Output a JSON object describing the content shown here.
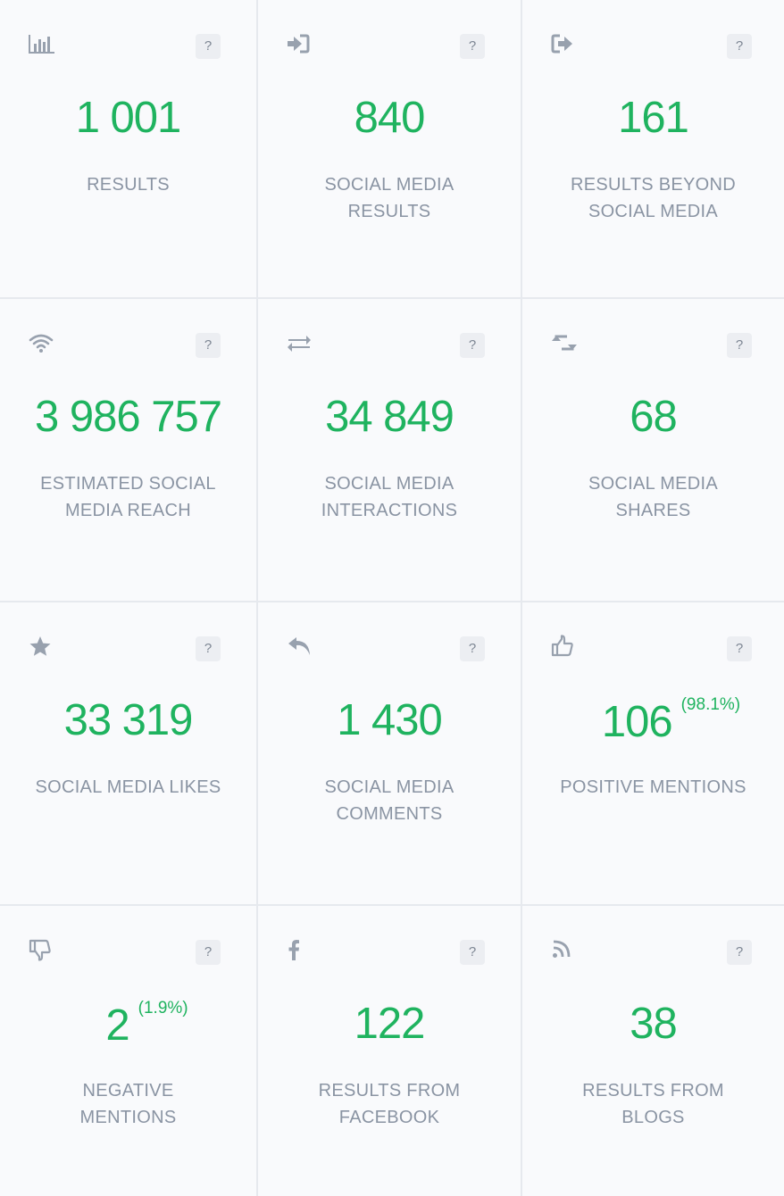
{
  "help_label": "?",
  "colors": {
    "accent": "#1fb35f",
    "label": "#8a94a3",
    "icon": "#98a1ae",
    "border": "#e6e9ee",
    "background": "#f9fafc"
  },
  "tiles": [
    {
      "icon": "bar-chart-icon",
      "value": "1 001",
      "percent": "",
      "label_lines": [
        "RESULTS"
      ]
    },
    {
      "icon": "sign-in-icon",
      "value": "840",
      "percent": "",
      "label_lines": [
        "SOCIAL MEDIA",
        "RESULTS"
      ]
    },
    {
      "icon": "sign-out-icon",
      "value": "161",
      "percent": "",
      "label_lines": [
        "RESULTS BEYOND",
        "SOCIAL MEDIA"
      ]
    },
    {
      "icon": "wifi-icon",
      "value": "3 986 757",
      "percent": "",
      "label_lines": [
        "ESTIMATED SOCIAL",
        "MEDIA REACH"
      ]
    },
    {
      "icon": "exchange-icon",
      "value": "34 849",
      "percent": "",
      "label_lines": [
        "SOCIAL MEDIA",
        "INTERACTIONS"
      ]
    },
    {
      "icon": "retweet-icon",
      "value": "68",
      "percent": "",
      "label_lines": [
        "SOCIAL MEDIA",
        "SHARES"
      ]
    },
    {
      "icon": "star-icon",
      "value": "33 319",
      "percent": "",
      "label_lines": [
        "SOCIAL MEDIA LIKES"
      ]
    },
    {
      "icon": "reply-icon",
      "value": "1 430",
      "percent": "",
      "label_lines": [
        "SOCIAL MEDIA",
        "COMMENTS"
      ]
    },
    {
      "icon": "thumbs-up-icon",
      "value": "106",
      "percent": "(98.1%)",
      "label_lines": [
        "POSITIVE MENTIONS"
      ]
    },
    {
      "icon": "thumbs-down-icon",
      "value": "2",
      "percent": "(1.9%)",
      "label_lines": [
        "NEGATIVE",
        "MENTIONS"
      ]
    },
    {
      "icon": "facebook-icon",
      "value": "122",
      "percent": "",
      "label_lines": [
        "RESULTS FROM",
        "FACEBOOK"
      ]
    },
    {
      "icon": "rss-icon",
      "value": "38",
      "percent": "",
      "label_lines": [
        "RESULTS FROM",
        "BLOGS"
      ]
    }
  ]
}
